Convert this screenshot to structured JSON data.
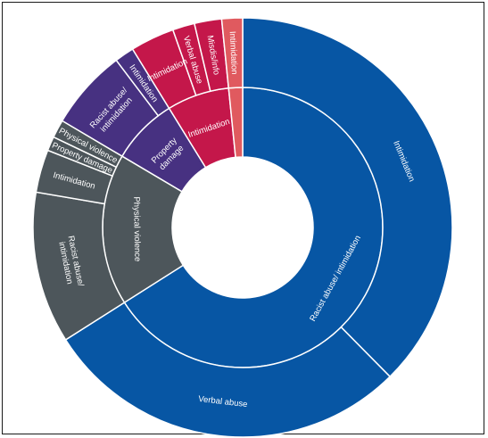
{
  "chart_data": {
    "type": "sunburst",
    "colors": {
      "Racist abuse/ intimidation": "#0756a4",
      "Physical violence": "#4d565b",
      "Property damage": "#473181",
      "Intimidation": "#c4174a",
      "Misdis/info": "#e05a5f",
      "border": "#ffffff"
    },
    "inner_ring": [
      {
        "label": "Racist abuse/ intimidation",
        "value": 66.0
      },
      {
        "label": "Physical violence",
        "value": 17.5
      },
      {
        "label": "Property damage",
        "value": 7.7
      },
      {
        "label": "Intimidation",
        "value": 7.2
      },
      {
        "label": "",
        "value": 1.6
      }
    ],
    "outer_ring": [
      {
        "label": "Intimidation",
        "value": 37.6,
        "parent": "Racist abuse/ intimidation"
      },
      {
        "label": "Verbal abuse",
        "value": 28.4,
        "parent": "Racist abuse/ intimidation"
      },
      {
        "label": "Racist abuse/ intimidation",
        "value": 11.7,
        "parent": "Physical violence"
      },
      {
        "label": "Intimidation",
        "value": 3.3,
        "parent": "Physical violence"
      },
      {
        "label": "Property damage",
        "value": 1.1,
        "parent": "Physical violence"
      },
      {
        "label": "Physical violence",
        "value": 1.4,
        "parent": "Physical violence"
      },
      {
        "label": "Racist abuse/ intimidation",
        "value": 6.2,
        "parent": "Property damage"
      },
      {
        "label": "Intimidation",
        "value": 1.5,
        "parent": "Property damage"
      },
      {
        "label": "Intimidation",
        "value": 3.4,
        "parent": "Intimidation"
      },
      {
        "label": "Verbal abuse",
        "value": 1.7,
        "parent": "Intimidation"
      },
      {
        "label": "Misdis/info",
        "value": 2.1,
        "parent": "Intimidation"
      },
      {
        "label": "Intimidation",
        "value": 1.6,
        "parent": "Misdis/info"
      }
    ]
  }
}
